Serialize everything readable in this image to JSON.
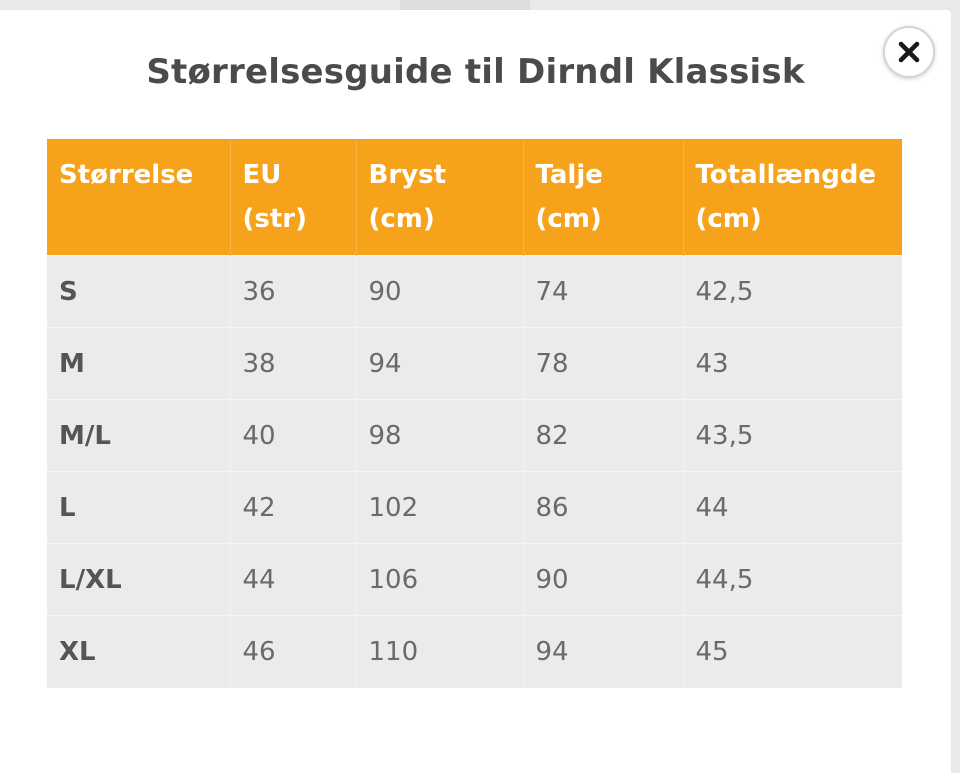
{
  "modal": {
    "title": "Størrelsesguide til Dirndl Klassisk",
    "close_icon": "close-icon"
  },
  "colors": {
    "header_bg": "#f7a21b",
    "header_text": "#ffffff",
    "row_bg": "#ebebeb",
    "title_text": "#4b4b4b"
  },
  "table": {
    "headers": [
      {
        "line1": "Størrelse",
        "line2": ""
      },
      {
        "line1": "EU",
        "line2": "(str)"
      },
      {
        "line1": "Bryst",
        "line2": "(cm)"
      },
      {
        "line1": "Talje",
        "line2": "(cm)"
      },
      {
        "line1": "Totallængde",
        "line2": "(cm)"
      }
    ],
    "rows": [
      [
        "S",
        "36",
        "90",
        "74",
        "42,5"
      ],
      [
        "M",
        "38",
        "94",
        "78",
        "43"
      ],
      [
        "M/L",
        "40",
        "98",
        "82",
        "43,5"
      ],
      [
        "L",
        "42",
        "102",
        "86",
        "44"
      ],
      [
        "L/XL",
        "44",
        "106",
        "90",
        "44,5"
      ],
      [
        "XL",
        "46",
        "110",
        "94",
        "45"
      ]
    ]
  }
}
